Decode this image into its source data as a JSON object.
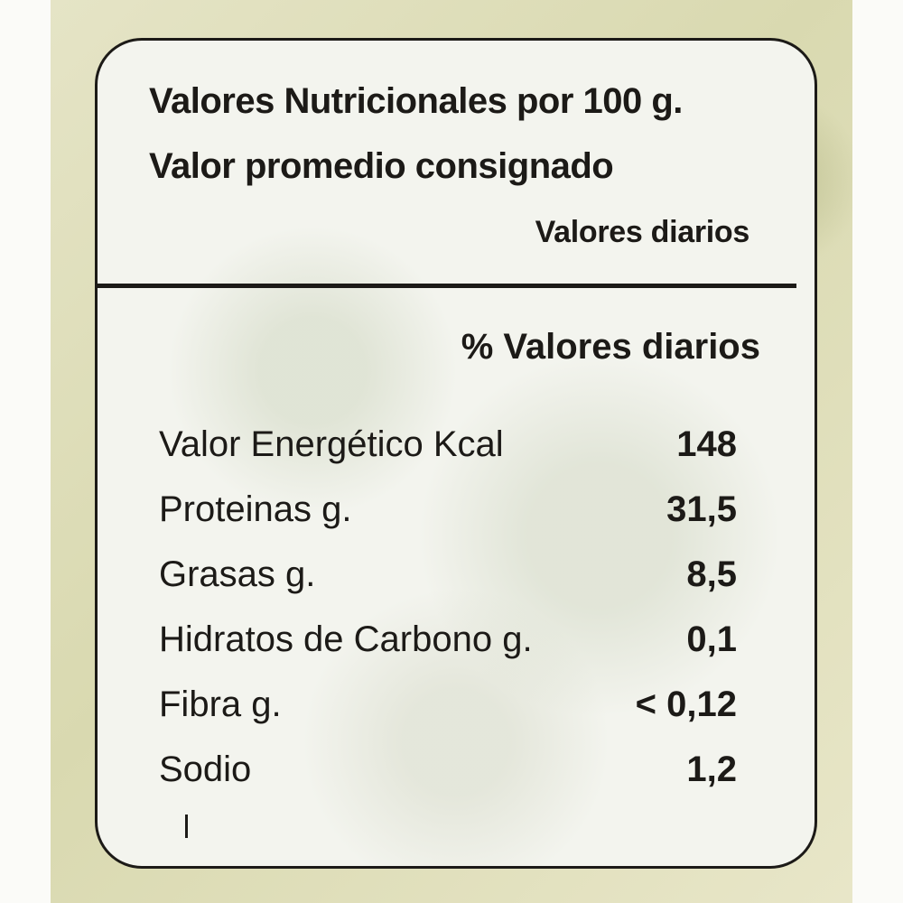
{
  "label": {
    "title_line_1": "Valores Nutricionales por 100 g.",
    "title_line_2": "Valor promedio consignado",
    "subheading": "Valores diarios",
    "percent_header": "% Valores diarios",
    "rows": [
      {
        "name": "Valor Energético Kcal",
        "value": "148"
      },
      {
        "name": "Proteinas g.",
        "value": "31,5"
      },
      {
        "name": "Grasas g.",
        "value": "8,5"
      },
      {
        "name": "Hidratos de Carbono g.",
        "value": "0,1"
      },
      {
        "name": "Fibra g.",
        "value": "< 0,12"
      },
      {
        "name": "Sodio",
        "value": "1,2"
      }
    ]
  },
  "colors": {
    "ink": "#1c1a17",
    "panel": "#f3f4ee",
    "package": "#dedcb8"
  }
}
